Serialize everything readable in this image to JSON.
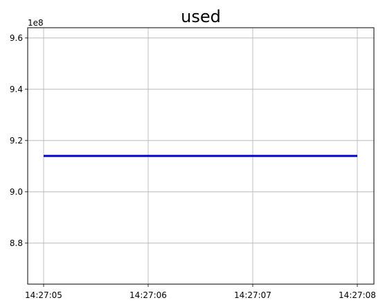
{
  "chart_data": {
    "type": "line",
    "title": "used",
    "xlabel": "",
    "ylabel": "",
    "y_offset_label": "1e8",
    "grid": true,
    "legend": false,
    "x": [
      "14:27:05",
      "14:27:06",
      "14:27:07",
      "14:27:08"
    ],
    "x_ticks": [
      "14:27:05",
      "14:27:06",
      "14:27:07",
      "14:27:08"
    ],
    "y_ticks": [
      "8.8",
      "9.0",
      "9.2",
      "9.4",
      "9.6"
    ],
    "y_tick_values": [
      8.8,
      9.0,
      9.2,
      9.4,
      9.6
    ],
    "ylim": [
      8.64,
      9.64
    ],
    "series": [
      {
        "color": "#0000cc",
        "values": [
          9.14,
          9.14,
          9.14,
          9.14
        ]
      }
    ]
  }
}
